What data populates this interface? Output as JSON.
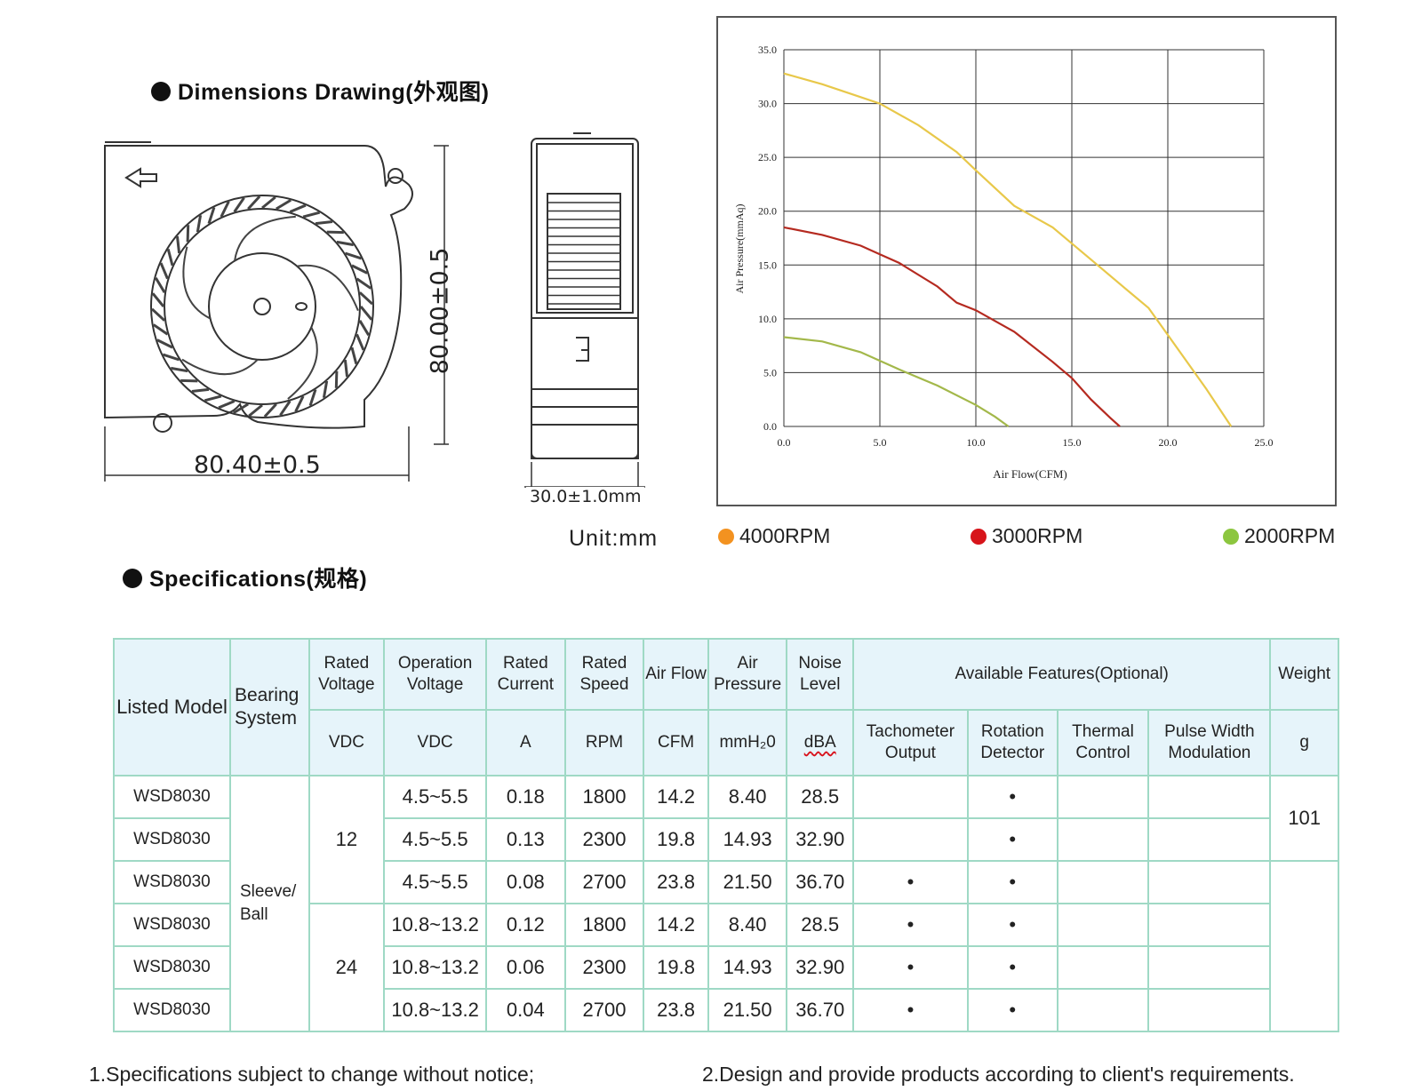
{
  "titles": {
    "dimensions": "Dimensions Drawing(外观图)",
    "specifications": "Specifications(规格)"
  },
  "dimensions": {
    "height": "80.00±0.5",
    "width": "80.40±0.5",
    "depth": "30.0±1.0mm",
    "unit": "Unit:mm"
  },
  "legend": [
    {
      "label": "4000RPM",
      "color": "#f39220"
    },
    {
      "label": "3000RPM",
      "color": "#d7141a"
    },
    {
      "label": "2000RPM",
      "color": "#8cc63f"
    }
  ],
  "chart_data": {
    "type": "line",
    "xlabel": "Air Flow(CFM)",
    "ylabel": "Air Pressure(mmAq)",
    "xlim": [
      0,
      25
    ],
    "ylim": [
      0,
      35
    ],
    "x_ticks": [
      "0.0",
      "5.0",
      "10.0",
      "15.0",
      "20.0",
      "25.0"
    ],
    "y_ticks": [
      "0.0",
      "5.0",
      "10.0",
      "15.0",
      "20.0",
      "25.0",
      "30.0",
      "35.0"
    ],
    "grid": true,
    "series": [
      {
        "name": "4000RPM",
        "color": "#e8c84a",
        "x": [
          0,
          2,
          4,
          5,
          7,
          9,
          10,
          12,
          14,
          16,
          18,
          19,
          20,
          22,
          23.3
        ],
        "y": [
          32.8,
          31.8,
          30.6,
          30.0,
          28.0,
          25.5,
          23.8,
          20.5,
          18.5,
          15.5,
          12.5,
          11.0,
          8.5,
          3.5,
          0
        ]
      },
      {
        "name": "3000RPM",
        "color": "#b52a20",
        "x": [
          0,
          2,
          4,
          5,
          6,
          8,
          9,
          10,
          12,
          14,
          15,
          16,
          17,
          17.5
        ],
        "y": [
          18.5,
          17.8,
          16.8,
          16.0,
          15.2,
          13.0,
          11.5,
          10.8,
          8.8,
          6.0,
          4.5,
          2.5,
          0.8,
          0
        ]
      },
      {
        "name": "2000RPM",
        "color": "#a3b84a",
        "x": [
          0,
          2,
          4,
          6,
          8,
          10,
          11,
          11.7
        ],
        "y": [
          8.3,
          7.9,
          6.9,
          5.3,
          3.8,
          2.0,
          0.9,
          0
        ]
      }
    ]
  },
  "table": {
    "headers": {
      "model": "Listed Model",
      "bearing": "Bearing System",
      "rated_voltage": "Rated Voltage",
      "operation_voltage": "Operation Voltage",
      "rated_current": "Rated Current",
      "rated_speed": "Rated Speed",
      "air_flow": "Air Flow",
      "air_pressure": "Air Pressure",
      "noise_level": "Noise Level",
      "features": "Available Features(Optional)",
      "weight": "Weight"
    },
    "units": {
      "rated_voltage": "VDC",
      "operation_voltage": "VDC",
      "rated_current": "A",
      "rated_speed": "RPM",
      "air_flow": "CFM",
      "air_pressure": "mmH₂0",
      "noise_level": "dBA",
      "tachometer": "Tachometer Output",
      "rotation": "Rotation Detector",
      "thermal": "Thermal Control",
      "pwm": "Pulse Width Modulation",
      "weight": "g"
    },
    "bearing_value": "Sleeve/ Ball",
    "voltage_groups": [
      "12",
      "24"
    ],
    "weight_value": "101",
    "feature_mark": "•",
    "rows": [
      {
        "model": "WSD8030",
        "op_voltage": "4.5~5.5",
        "current": "0.18",
        "speed": "1800",
        "flow": "14.2",
        "pressure": "8.40",
        "noise": "28.5",
        "tach": false,
        "rot": true
      },
      {
        "model": "WSD8030",
        "op_voltage": "4.5~5.5",
        "current": "0.13",
        "speed": "2300",
        "flow": "19.8",
        "pressure": "14.93",
        "noise": "32.90",
        "tach": false,
        "rot": true
      },
      {
        "model": "WSD8030",
        "op_voltage": "4.5~5.5",
        "current": "0.08",
        "speed": "2700",
        "flow": "23.8",
        "pressure": "21.50",
        "noise": "36.70",
        "tach": true,
        "rot": true
      },
      {
        "model": "WSD8030",
        "op_voltage": "10.8~13.2",
        "current": "0.12",
        "speed": "1800",
        "flow": "14.2",
        "pressure": "8.40",
        "noise": "28.5",
        "tach": true,
        "rot": true
      },
      {
        "model": "WSD8030",
        "op_voltage": "10.8~13.2",
        "current": "0.06",
        "speed": "2300",
        "flow": "19.8",
        "pressure": "14.93",
        "noise": "32.90",
        "tach": true,
        "rot": true
      },
      {
        "model": "WSD8030",
        "op_voltage": "10.8~13.2",
        "current": "0.04",
        "speed": "2700",
        "flow": "23.8",
        "pressure": "21.50",
        "noise": "36.70",
        "tach": true,
        "rot": true
      }
    ]
  },
  "footnotes": {
    "note1": "1.Specifications subject to change without notice;",
    "note2": "2.Design and provide products according to client's requirements."
  }
}
